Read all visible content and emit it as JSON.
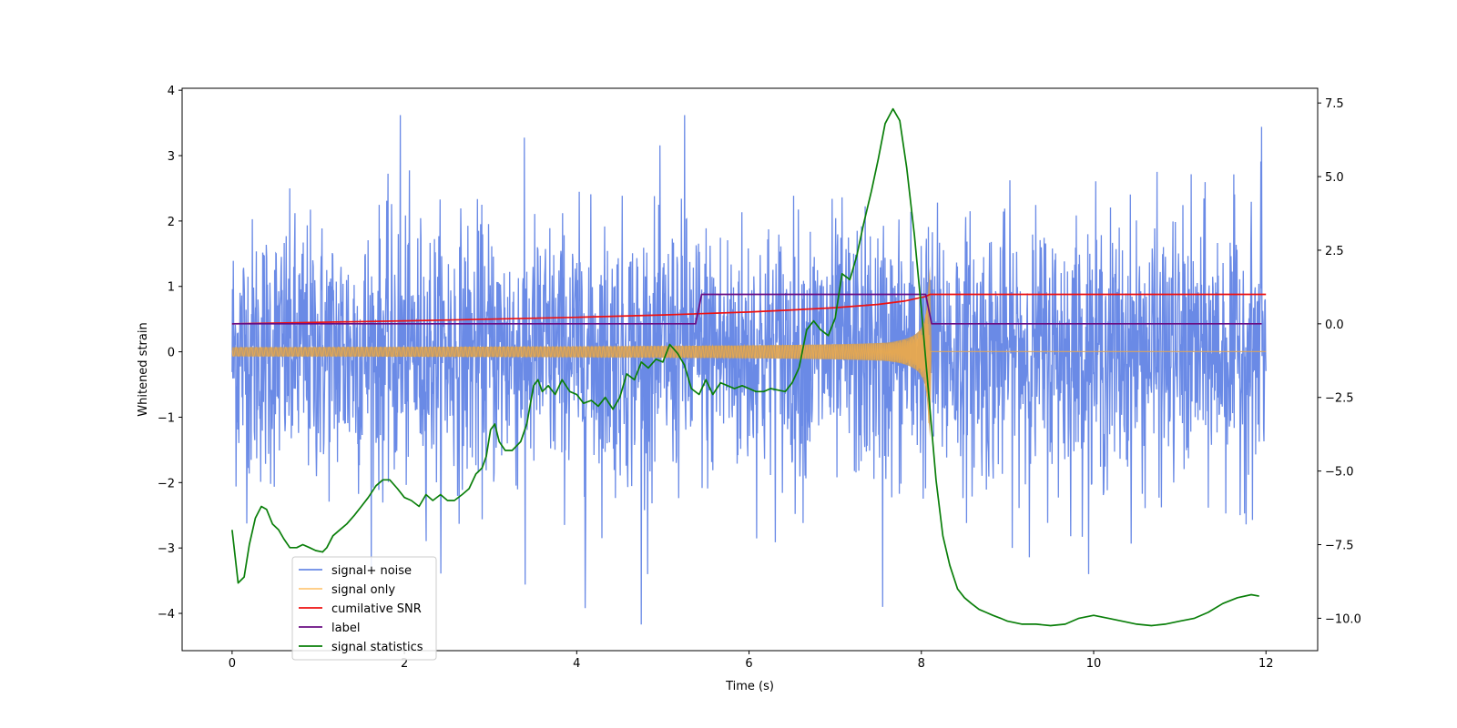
{
  "chart_data": {
    "type": "line",
    "xlabel": "Time (s)",
    "ylabel": "Whitened strain",
    "y2label": "",
    "xlim": [
      -0.58,
      12.6
    ],
    "ylim": [
      -4.57,
      4.03
    ],
    "y2lim": [
      -11.1,
      8.0
    ],
    "xticks": [
      "0",
      "2",
      "4",
      "6",
      "8",
      "10",
      "12"
    ],
    "yticks": [
      "4",
      "3",
      "2",
      "1",
      "0",
      "−1",
      "−2",
      "−3",
      "−4"
    ],
    "y2ticks": [
      "7.5",
      "5.0",
      "2.5",
      "0.0",
      "−2.5",
      "−5.0",
      "−7.5",
      "−10.0"
    ],
    "legend_position": "lower-left",
    "grid": false,
    "noise": {
      "name": "signal+ noise",
      "color": "#6a8ae6",
      "x_range": [
        0,
        12
      ],
      "typical_amplitude": 1.0,
      "extremes": [
        {
          "x": 1.95,
          "y": 3.62
        },
        {
          "x": 3.4,
          "y": -3.56
        },
        {
          "x": 4.1,
          "y": -3.92
        },
        {
          "x": 4.75,
          "y": -4.17
        },
        {
          "x": 5.25,
          "y": 3.62
        },
        {
          "x": 7.55,
          "y": -3.9
        },
        {
          "x": 11.95,
          "y": 3.44
        }
      ]
    },
    "series": [
      {
        "name": "signal only",
        "color": "#ffb040",
        "axis": "left",
        "kind": "chirp",
        "x_range": [
          0,
          12
        ],
        "merger_time": 8.1,
        "start_amplitude": 0.07,
        "peak_amplitude": 1.9
      },
      {
        "name": "cumilative SNR",
        "color": "#ee1111",
        "axis": "right",
        "x": [
          0,
          1,
          2,
          3,
          4,
          5,
          6,
          6.5,
          7,
          7.5,
          7.8,
          8.05,
          8.1,
          12
        ],
        "values": [
          0.0,
          0.05,
          0.1,
          0.16,
          0.22,
          0.3,
          0.4,
          0.47,
          0.55,
          0.66,
          0.77,
          0.93,
          1.0,
          1.0
        ]
      },
      {
        "name": "label",
        "color": "#6a0d83",
        "axis": "right",
        "x": [
          0,
          5.38,
          5.45,
          8.05,
          8.12,
          11.95
        ],
        "values": [
          0,
          0,
          1,
          1,
          0,
          0
        ]
      },
      {
        "name": "signal statistics",
        "color": "#0a7f0a",
        "axis": "right",
        "x": [
          0,
          0.07,
          0.14,
          0.2,
          0.27,
          0.34,
          0.4,
          0.47,
          0.54,
          0.6,
          0.67,
          0.75,
          0.82,
          0.9,
          0.97,
          1.05,
          1.1,
          1.17,
          1.25,
          1.33,
          1.42,
          1.5,
          1.58,
          1.67,
          1.75,
          1.83,
          1.92,
          2.0,
          2.08,
          2.17,
          2.25,
          2.33,
          2.42,
          2.5,
          2.58,
          2.67,
          2.75,
          2.83,
          2.9,
          2.95,
          3.0,
          3.05,
          3.1,
          3.17,
          3.25,
          3.35,
          3.42,
          3.5,
          3.55,
          3.6,
          3.67,
          3.75,
          3.83,
          3.92,
          4.0,
          4.08,
          4.17,
          4.25,
          4.33,
          4.42,
          4.5,
          4.58,
          4.67,
          4.75,
          4.83,
          4.92,
          5.0,
          5.08,
          5.17,
          5.25,
          5.33,
          5.42,
          5.5,
          5.58,
          5.67,
          5.75,
          5.83,
          5.92,
          6.0,
          6.08,
          6.17,
          6.25,
          6.33,
          6.42,
          6.5,
          6.58,
          6.67,
          6.75,
          6.83,
          6.92,
          7.0,
          7.08,
          7.17,
          7.25,
          7.33,
          7.42,
          7.5,
          7.58,
          7.67,
          7.75,
          7.83,
          7.92,
          8.0,
          8.08,
          8.17,
          8.25,
          8.33,
          8.42,
          8.5,
          8.58,
          8.67,
          8.75,
          8.83,
          8.92,
          9.0,
          9.17,
          9.33,
          9.5,
          9.67,
          9.83,
          10.0,
          10.17,
          10.33,
          10.5,
          10.67,
          10.83,
          11.0,
          11.17,
          11.33,
          11.5,
          11.67,
          11.83,
          11.92
        ],
        "values": [
          -7.0,
          -8.8,
          -8.6,
          -7.5,
          -6.6,
          -6.2,
          -6.3,
          -6.8,
          -7.0,
          -7.3,
          -7.6,
          -7.6,
          -7.5,
          -7.6,
          -7.7,
          -7.75,
          -7.6,
          -7.2,
          -7.0,
          -6.8,
          -6.5,
          -6.2,
          -5.9,
          -5.5,
          -5.3,
          -5.3,
          -5.6,
          -5.9,
          -6.0,
          -6.2,
          -5.8,
          -6.0,
          -5.8,
          -6.0,
          -6.0,
          -5.8,
          -5.6,
          -5.1,
          -4.9,
          -4.5,
          -3.6,
          -3.4,
          -4.0,
          -4.3,
          -4.3,
          -4.0,
          -3.4,
          -2.1,
          -1.9,
          -2.3,
          -2.1,
          -2.4,
          -1.9,
          -2.3,
          -2.4,
          -2.7,
          -2.6,
          -2.8,
          -2.5,
          -2.9,
          -2.5,
          -1.7,
          -1.9,
          -1.3,
          -1.5,
          -1.2,
          -1.3,
          -0.7,
          -1.0,
          -1.4,
          -2.2,
          -2.4,
          -1.9,
          -2.4,
          -2.0,
          -2.1,
          -2.2,
          -2.1,
          -2.2,
          -2.3,
          -2.3,
          -2.2,
          -2.25,
          -2.3,
          -2.0,
          -1.5,
          -0.2,
          0.1,
          -0.2,
          -0.4,
          0.2,
          1.7,
          1.5,
          2.3,
          3.4,
          4.5,
          5.6,
          6.8,
          7.3,
          6.9,
          5.3,
          3.0,
          0.5,
          -2.2,
          -5.3,
          -7.2,
          -8.2,
          -9.0,
          -9.3,
          -9.5,
          -9.7,
          -9.8,
          -9.9,
          -10.0,
          -10.1,
          -10.2,
          -10.2,
          -10.25,
          -10.2,
          -10.0,
          -9.9,
          -10.0,
          -10.1,
          -10.2,
          -10.25,
          -10.2,
          -10.1,
          -10.0,
          -9.8,
          -9.5,
          -9.3,
          -9.2,
          -9.25
        ]
      }
    ]
  }
}
